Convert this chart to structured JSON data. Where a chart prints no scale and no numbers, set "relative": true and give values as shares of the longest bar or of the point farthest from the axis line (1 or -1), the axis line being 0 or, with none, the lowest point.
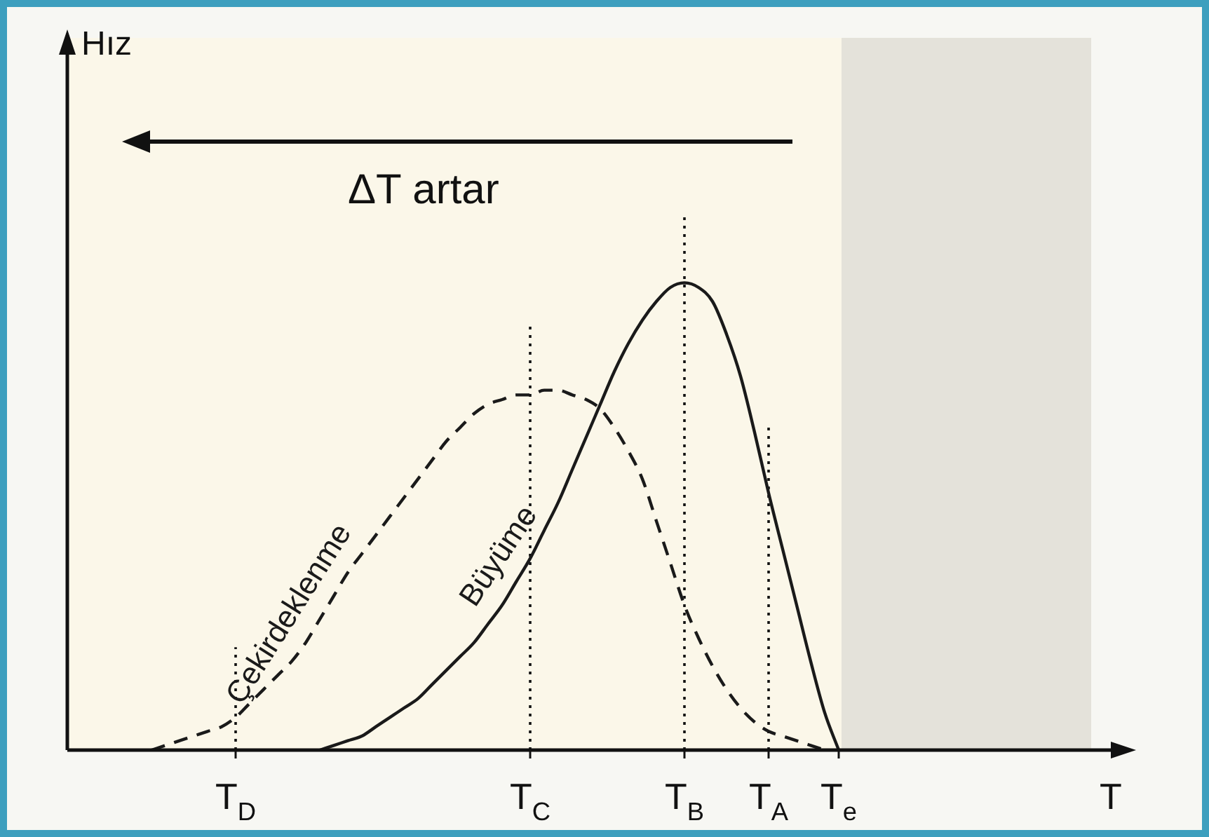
{
  "chart_data": {
    "type": "line",
    "relative": true,
    "xlabel": "T",
    "categories": [
      null,
      null,
      null,
      null,
      null,
      null,
      null,
      null,
      null,
      null,
      null,
      null,
      "T$_{D}$",
      null,
      null,
      null,
      null,
      null,
      null,
      null,
      null,
      null,
      null,
      null,
      null,
      null,
      null,
      null,
      null,
      null,
      null,
      null,
      null,
      "T$_{C}$",
      null,
      null,
      null,
      null,
      null,
      null,
      null,
      null,
      null,
      null,
      "T$_{B}$",
      null,
      null,
      null,
      null,
      null,
      "T$_{A}$",
      null,
      null,
      null,
      null,
      "T$_{e}$",
      null,
      null,
      null,
      null,
      null,
      null,
      null,
      null,
      null,
      null,
      null,
      null,
      null,
      null,
      null,
      null,
      null,
      null
    ],
    "series": [
      {
        "name": "Çekirdeklenme",
        "color": "#1a1a1a",
        "line_style": "dashed",
        "values": [
          null,
          null,
          null,
          null,
          null,
          null,
          0,
          0.01,
          0.02,
          0.03,
          0.04,
          0.05,
          0.07,
          0.1,
          0.13,
          0.16,
          0.19,
          0.23,
          0.28,
          0.33,
          0.38,
          0.42,
          0.46,
          0.5,
          0.54,
          0.58,
          0.62,
          0.66,
          0.69,
          0.72,
          0.74,
          0.75,
          0.76,
          0.76,
          0.77,
          0.77,
          0.76,
          0.75,
          0.73,
          0.69,
          0.64,
          0.58,
          0.49,
          0.4,
          0.31,
          0.24,
          0.18,
          0.13,
          0.09,
          0.06,
          0.04,
          0.03,
          0.02,
          0.01,
          0,
          null,
          null,
          null,
          null,
          null,
          null,
          null,
          null,
          null,
          null,
          null,
          null,
          null,
          null,
          null,
          null,
          null,
          null,
          null
        ]
      },
      {
        "name": "Büyüme",
        "color": "#1a1a1a",
        "line_style": "solid",
        "values": [
          null,
          null,
          null,
          null,
          null,
          null,
          null,
          null,
          null,
          null,
          null,
          null,
          null,
          null,
          null,
          null,
          null,
          null,
          0,
          0.01,
          0.02,
          0.03,
          0.05,
          0.07,
          0.09,
          0.11,
          0.14,
          0.17,
          0.2,
          0.23,
          0.27,
          0.31,
          0.36,
          0.41,
          0.47,
          0.53,
          0.6,
          0.67,
          0.74,
          0.81,
          0.87,
          0.92,
          0.96,
          0.99,
          1,
          0.99,
          0.96,
          0.89,
          0.8,
          0.68,
          0.55,
          0.43,
          0.31,
          0.19,
          0.08,
          0,
          null,
          null,
          null,
          null,
          null,
          null,
          null,
          null,
          null,
          null,
          null,
          null,
          null,
          null,
          null,
          null,
          null,
          null
        ]
      }
    ],
    "ref_lines": [
      {
        "axis": "x",
        "value": "T$_{D}$",
        "line_style": "dotted"
      },
      {
        "axis": "x",
        "value": "T$_{C}$",
        "line_style": "dotted"
      },
      {
        "axis": "x",
        "value": "T$_{B}$",
        "line_style": "dotted"
      },
      {
        "axis": "x",
        "value": "T$_{A}$",
        "line_style": "dotted"
      }
    ],
    "annotations": [
      "Hız",
      "ΔT artar"
    ],
    "legend": false
  }
}
